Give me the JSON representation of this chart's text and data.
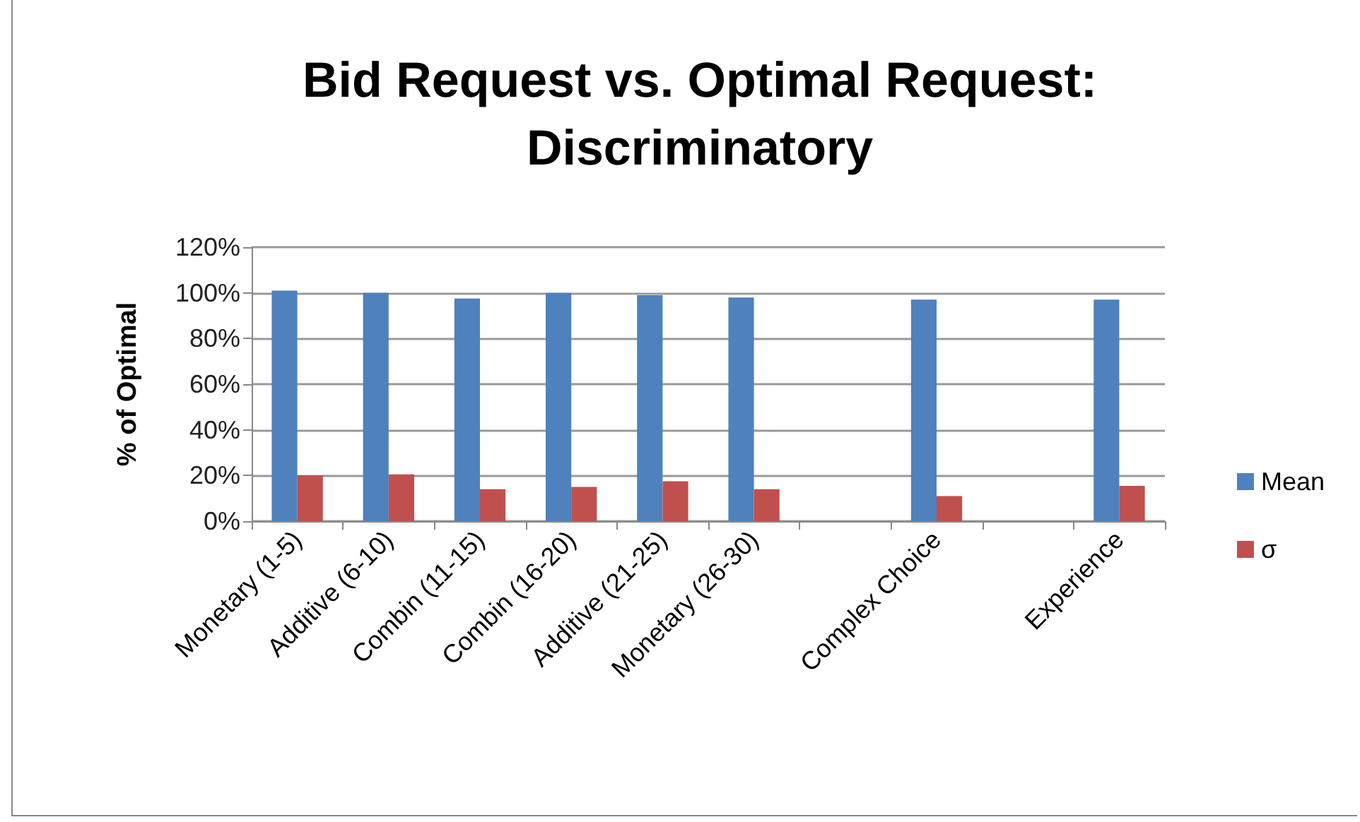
{
  "chart_data": {
    "type": "bar",
    "title": "Bid Request vs. Optimal Request:\nDiscriminatory",
    "ylabel": "% of Optimal",
    "categories": [
      "Monetary (1-5)",
      "Additive (6-10)",
      "Combin (11-15)",
      "Combin (16-20)",
      "Additive (21-25)",
      "Monetary (26-30)",
      null,
      "Complex Choice",
      null,
      "Experience"
    ],
    "series": [
      {
        "name": "Mean",
        "color": "#4f81bd",
        "values": [
          101,
          100,
          97.5,
          100,
          99,
          98,
          null,
          97,
          null,
          97
        ]
      },
      {
        "name": "σ",
        "color": "#c0504d",
        "values": [
          20,
          20.5,
          14,
          15,
          17.5,
          14,
          null,
          11,
          null,
          15.5
        ]
      }
    ],
    "ylim": [
      0,
      120
    ],
    "yticks": [
      {
        "value": 0,
        "label": "0%"
      },
      {
        "value": 20,
        "label": "20%"
      },
      {
        "value": 40,
        "label": "40%"
      },
      {
        "value": 60,
        "label": "60%"
      },
      {
        "value": 80,
        "label": "80%"
      },
      {
        "value": 100,
        "label": "100%"
      },
      {
        "value": 120,
        "label": "120%"
      }
    ],
    "grid": "y",
    "legend": "right"
  }
}
